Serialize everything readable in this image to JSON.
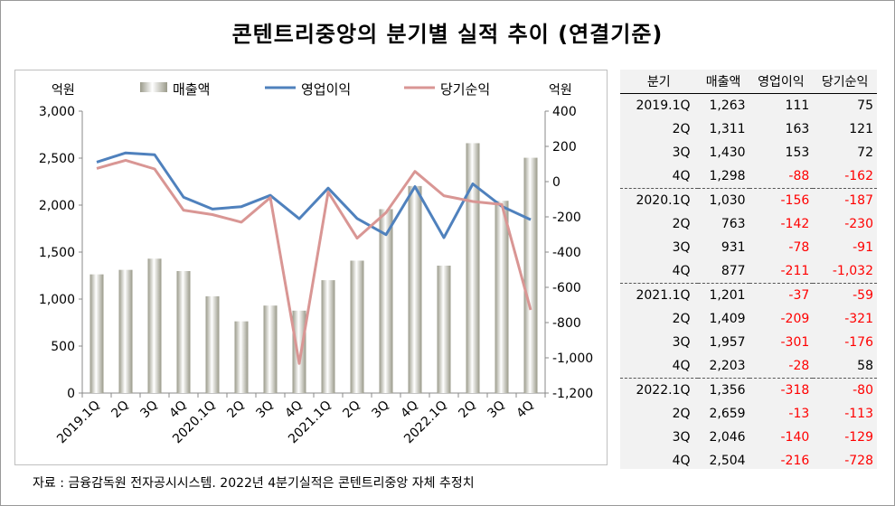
{
  "title": "콘텐트리중앙의 분기별 실적 추이 (연결기준)",
  "source": "자료 : 금융감독원 전자공시시스템. 2022년 4분기실적은 콘텐트리중앙 자체 추정치",
  "chart_data": {
    "type": "bar+line",
    "categories": [
      "2019.1Q",
      "2Q",
      "3Q",
      "4Q",
      "2020.1Q",
      "2Q",
      "3Q",
      "4Q",
      "2021.1Q",
      "2Q",
      "3Q",
      "4Q",
      "2022.1Q",
      "2Q",
      "3Q",
      "4Q"
    ],
    "y_left_unit": "억원",
    "y_right_unit": "억원",
    "y_left_range": [
      0,
      3000
    ],
    "y_left_ticks": [
      "0",
      "500",
      "1,000",
      "1,500",
      "2,000",
      "2,500",
      "3,000"
    ],
    "y_right_range": [
      -1200,
      400
    ],
    "y_right_ticks": [
      "-1,200",
      "-1,000",
      "-800",
      "-600",
      "-400",
      "-200",
      "0",
      "200",
      "400"
    ],
    "legend_position": "top",
    "series": [
      {
        "name": "매출액",
        "axis": "left",
        "type": "bar",
        "color": "#c8c8b8",
        "values": [
          1263,
          1311,
          1430,
          1298,
          1030,
          763,
          931,
          877,
          1201,
          1409,
          1957,
          2203,
          1356,
          2659,
          2046,
          2504
        ]
      },
      {
        "name": "영업이익",
        "axis": "right",
        "type": "line",
        "color": "#4f81bd",
        "values": [
          111,
          163,
          153,
          -88,
          -156,
          -142,
          -78,
          -211,
          -37,
          -209,
          -301,
          -28,
          -318,
          -13,
          -140,
          -216
        ]
      },
      {
        "name": "당기순익",
        "axis": "right",
        "type": "line",
        "color": "#d99694",
        "values": [
          75,
          121,
          72,
          -162,
          -187,
          -230,
          -91,
          -1032,
          -59,
          -321,
          -176,
          58,
          -80,
          -113,
          -129,
          -728
        ]
      }
    ]
  },
  "table": {
    "headers": [
      "분기",
      "매출액",
      "영업이익",
      "당기순익"
    ],
    "rows": [
      {
        "q": "2019.1Q",
        "sales": "1,263",
        "op": "111",
        "net": "75",
        "op_neg": false,
        "net_neg": false,
        "grp": false
      },
      {
        "q": "2Q",
        "sales": "1,311",
        "op": "163",
        "net": "121",
        "op_neg": false,
        "net_neg": false,
        "grp": false
      },
      {
        "q": "3Q",
        "sales": "1,430",
        "op": "153",
        "net": "72",
        "op_neg": false,
        "net_neg": false,
        "grp": false
      },
      {
        "q": "4Q",
        "sales": "1,298",
        "op": "-88",
        "net": "-162",
        "op_neg": true,
        "net_neg": true,
        "grp": false
      },
      {
        "q": "2020.1Q",
        "sales": "1,030",
        "op": "-156",
        "net": "-187",
        "op_neg": true,
        "net_neg": true,
        "grp": true
      },
      {
        "q": "2Q",
        "sales": "763",
        "op": "-142",
        "net": "-230",
        "op_neg": true,
        "net_neg": true,
        "grp": false
      },
      {
        "q": "3Q",
        "sales": "931",
        "op": "-78",
        "net": "-91",
        "op_neg": true,
        "net_neg": true,
        "grp": false
      },
      {
        "q": "4Q",
        "sales": "877",
        "op": "-211",
        "net": "-1,032",
        "op_neg": true,
        "net_neg": true,
        "grp": false
      },
      {
        "q": "2021.1Q",
        "sales": "1,201",
        "op": "-37",
        "net": "-59",
        "op_neg": true,
        "net_neg": true,
        "grp": true
      },
      {
        "q": "2Q",
        "sales": "1,409",
        "op": "-209",
        "net": "-321",
        "op_neg": true,
        "net_neg": true,
        "grp": false
      },
      {
        "q": "3Q",
        "sales": "1,957",
        "op": "-301",
        "net": "-176",
        "op_neg": true,
        "net_neg": true,
        "grp": false
      },
      {
        "q": "4Q",
        "sales": "2,203",
        "op": "-28",
        "net": "58",
        "op_neg": true,
        "net_neg": false,
        "grp": false
      },
      {
        "q": "2022.1Q",
        "sales": "1,356",
        "op": "-318",
        "net": "-80",
        "op_neg": true,
        "net_neg": true,
        "grp": true
      },
      {
        "q": "2Q",
        "sales": "2,659",
        "op": "-13",
        "net": "-113",
        "op_neg": true,
        "net_neg": true,
        "grp": false
      },
      {
        "q": "3Q",
        "sales": "2,046",
        "op": "-140",
        "net": "-129",
        "op_neg": true,
        "net_neg": true,
        "grp": false
      },
      {
        "q": "4Q",
        "sales": "2,504",
        "op": "-216",
        "net": "-728",
        "op_neg": true,
        "net_neg": true,
        "grp": false
      }
    ]
  }
}
